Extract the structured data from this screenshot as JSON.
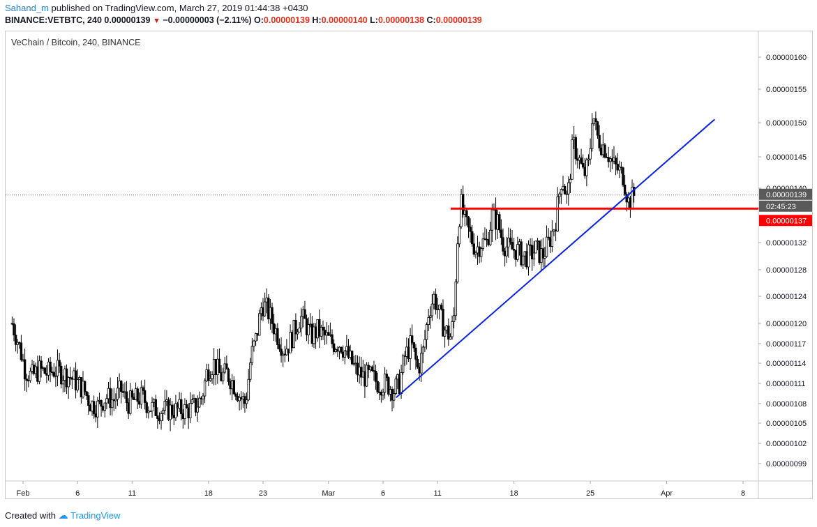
{
  "header": {
    "author": "Sahand_m",
    "published": "published on TradingView.com, March 27, 2019 01:44:38 +0430",
    "symbol_line": "BINANCE:VETBTC, 240",
    "last": "0.00000139",
    "change": "−0.00000003 (−2.11%)",
    "o_label": "O:",
    "o_value": "0.00000139",
    "h_label": "H:",
    "h_value": "0.00000140",
    "l_label": "L:",
    "l_value": "0.00000138",
    "c_label": "C:",
    "c_value": "0.00000139"
  },
  "chart_title": "VeChain / Bitcoin, 240, BINANCE",
  "footer": {
    "created_with": "Created with",
    "brand": "TradingView"
  },
  "colors": {
    "candle": "#000000",
    "trendline": "#0a22e6",
    "support": "#ff0000",
    "last_price_badge": "#5a5a5a",
    "support_badge": "#ff0000"
  },
  "chart_data": {
    "type": "candlestick",
    "symbol": "VETBTC",
    "exchange": "BINANCE",
    "interval": "240",
    "y_ticks": [
      "0.00000160",
      "0.00000155",
      "0.00000150",
      "0.00000145",
      "0.00000140",
      "0.00000132",
      "0.00000128",
      "0.00000124",
      "0.00000120",
      "0.00000117",
      "0.00000114",
      "0.00000111",
      "0.00000108",
      "0.00000105",
      "0.00000102",
      "0.00000099"
    ],
    "y_tick_values": [
      1.6,
      1.55,
      1.5,
      1.45,
      1.4,
      1.32,
      1.28,
      1.24,
      1.2,
      1.17,
      1.14,
      1.11,
      1.08,
      1.05,
      1.02,
      0.99
    ],
    "y_unit_note": "y_tick_values and price values below are in units of 1e-6 BTC",
    "x_ticks": [
      "Feb",
      "6",
      "11",
      "18",
      "23",
      "Mar",
      "6",
      "11",
      "18",
      "25",
      "Apr",
      "8"
    ],
    "x_tick_days": [
      31,
      36,
      41,
      48,
      53,
      59,
      64,
      69,
      76,
      83,
      90,
      97
    ],
    "x_unit_note": "day numbers counted from Jan 1 2019 (Feb 1 = 31)",
    "last_price_label": "0.00000139",
    "countdown_label": "02:45:23",
    "support_label": "0.00000137",
    "last_price": 1.39,
    "support_level": 1.37,
    "support_start_day": 70.2,
    "trendline": {
      "x1": 65.2,
      "y1": 1.089,
      "x2": 94.4,
      "y2": 1.505
    },
    "price_path": [
      [
        30.0,
        1.2
      ],
      [
        30.6,
        1.17
      ],
      [
        31.2,
        1.13
      ],
      [
        31.8,
        1.12
      ],
      [
        32.5,
        1.13
      ],
      [
        33.2,
        1.125
      ],
      [
        33.9,
        1.13
      ],
      [
        34.6,
        1.125
      ],
      [
        35.3,
        1.12
      ],
      [
        36.0,
        1.11
      ],
      [
        36.6,
        1.1
      ],
      [
        37.2,
        1.08
      ],
      [
        37.9,
        1.075
      ],
      [
        38.6,
        1.09
      ],
      [
        39.3,
        1.085
      ],
      [
        40.0,
        1.1
      ],
      [
        40.6,
        1.08
      ],
      [
        41.2,
        1.085
      ],
      [
        41.9,
        1.09
      ],
      [
        42.6,
        1.075
      ],
      [
        43.3,
        1.07
      ],
      [
        44.0,
        1.07
      ],
      [
        44.7,
        1.07
      ],
      [
        45.4,
        1.07
      ],
      [
        46.1,
        1.07
      ],
      [
        46.8,
        1.075
      ],
      [
        47.4,
        1.09
      ],
      [
        47.9,
        1.13
      ],
      [
        48.5,
        1.14
      ],
      [
        49.1,
        1.12
      ],
      [
        49.7,
        1.125
      ],
      [
        50.3,
        1.11
      ],
      [
        50.9,
        1.09
      ],
      [
        51.4,
        1.08
      ],
      [
        51.9,
        1.15
      ],
      [
        52.4,
        1.18
      ],
      [
        52.9,
        1.23
      ],
      [
        53.4,
        1.22
      ],
      [
        53.9,
        1.2
      ],
      [
        54.4,
        1.18
      ],
      [
        54.9,
        1.16
      ],
      [
        55.4,
        1.17
      ],
      [
        55.9,
        1.19
      ],
      [
        56.4,
        1.21
      ],
      [
        56.9,
        1.2
      ],
      [
        57.4,
        1.18
      ],
      [
        58.0,
        1.19
      ],
      [
        58.7,
        1.18
      ],
      [
        59.4,
        1.17
      ],
      [
        60.1,
        1.17
      ],
      [
        60.8,
        1.15
      ],
      [
        61.5,
        1.13
      ],
      [
        62.2,
        1.12
      ],
      [
        62.9,
        1.12
      ],
      [
        63.6,
        1.11
      ],
      [
        64.3,
        1.11
      ],
      [
        65.0,
        1.1
      ],
      [
        65.5,
        1.11
      ],
      [
        66.0,
        1.15
      ],
      [
        66.6,
        1.17
      ],
      [
        67.2,
        1.13
      ],
      [
        67.7,
        1.16
      ],
      [
        68.2,
        1.22
      ],
      [
        68.7,
        1.24
      ],
      [
        69.2,
        1.21
      ],
      [
        69.7,
        1.19
      ],
      [
        70.2,
        1.18
      ],
      [
        70.5,
        1.21
      ],
      [
        70.8,
        1.32
      ],
      [
        71.1,
        1.38
      ],
      [
        71.5,
        1.35
      ],
      [
        72.0,
        1.33
      ],
      [
        72.5,
        1.31
      ],
      [
        73.0,
        1.32
      ],
      [
        73.5,
        1.32
      ],
      [
        74.0,
        1.36
      ],
      [
        74.5,
        1.35
      ],
      [
        75.0,
        1.32
      ],
      [
        75.6,
        1.31
      ],
      [
        76.2,
        1.31
      ],
      [
        76.8,
        1.3
      ],
      [
        77.4,
        1.3
      ],
      [
        78.0,
        1.31
      ],
      [
        78.6,
        1.3
      ],
      [
        79.2,
        1.32
      ],
      [
        79.8,
        1.35
      ],
      [
        80.4,
        1.42
      ],
      [
        80.9,
        1.38
      ],
      [
        81.4,
        1.47
      ],
      [
        81.9,
        1.45
      ],
      [
        82.4,
        1.42
      ],
      [
        82.9,
        1.44
      ],
      [
        83.2,
        1.52
      ],
      [
        83.6,
        1.48
      ],
      [
        84.0,
        1.47
      ],
      [
        84.5,
        1.46
      ],
      [
        85.0,
        1.44
      ],
      [
        85.5,
        1.43
      ],
      [
        86.0,
        1.42
      ],
      [
        86.5,
        1.38
      ],
      [
        87.0,
        1.39
      ]
    ]
  }
}
